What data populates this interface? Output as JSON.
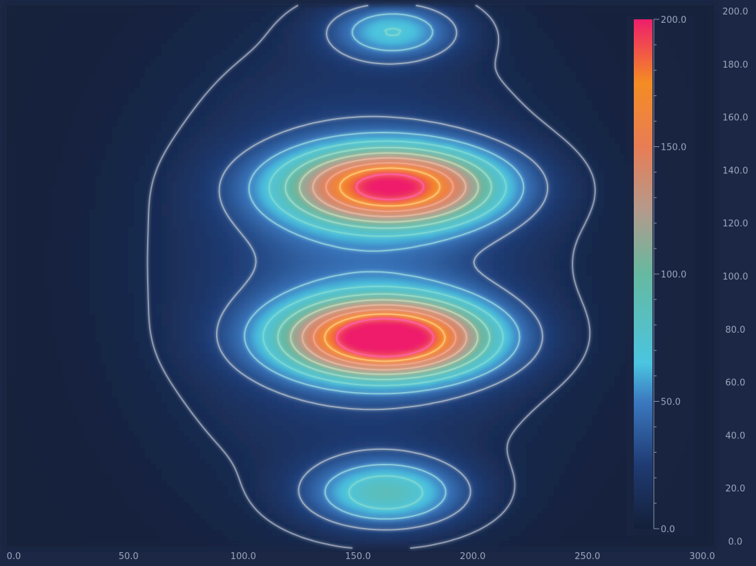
{
  "chart_data": {
    "type": "heatmap",
    "subtype": "heatmap-with-contours",
    "xlim": [
      0,
      300
    ],
    "ylim": [
      0,
      200
    ],
    "x_ticks": [
      "0.0",
      "50.0",
      "100.0",
      "150.0",
      "200.0",
      "250.0",
      "300.0"
    ],
    "y_ticks": [
      "0.0",
      "20.0",
      "40.0",
      "60.0",
      "80.0",
      "100.0",
      "120.0",
      "140.0",
      "160.0",
      "180.0",
      "200.0"
    ],
    "x_axis_position": "bottom",
    "y_axis_position": "right",
    "grid": false,
    "colorbar": {
      "position": "right",
      "range": [
        0,
        200
      ],
      "ticks": [
        "0.0",
        "50.0",
        "100.0",
        "150.0",
        "200.0"
      ],
      "colors": [
        {
          "value": 0,
          "color": "#14203a"
        },
        {
          "value": 25,
          "color": "#1f3b73"
        },
        {
          "value": 50,
          "color": "#3b79c0"
        },
        {
          "value": 65,
          "color": "#4bc5e0"
        },
        {
          "value": 100,
          "color": "#66b9a0"
        },
        {
          "value": 125,
          "color": "#b49a8c"
        },
        {
          "value": 150,
          "color": "#e87d55"
        },
        {
          "value": 175,
          "color": "#f48c24"
        },
        {
          "value": 200,
          "color": "#ee1e6b"
        }
      ]
    },
    "peaks": [
      {
        "x": 165,
        "y": 77,
        "value": 200
      },
      {
        "x": 165,
        "y": 132,
        "value": 170
      },
      {
        "x": 168,
        "y": 17,
        "value": 70
      },
      {
        "x": 165,
        "y": 190,
        "value": 60
      }
    ],
    "contour_levels": [
      10,
      30,
      50,
      70,
      90,
      110,
      130,
      150,
      170,
      190
    ],
    "contour_colors": [
      "#9aa3b8",
      "#a4b2c4",
      "#8fd0de",
      "#7ed8d2",
      "#9cdcc6",
      "#c4d6b4",
      "#e8b8a0",
      "#f0a890",
      "#ffc878",
      "#ff5fa8"
    ]
  }
}
